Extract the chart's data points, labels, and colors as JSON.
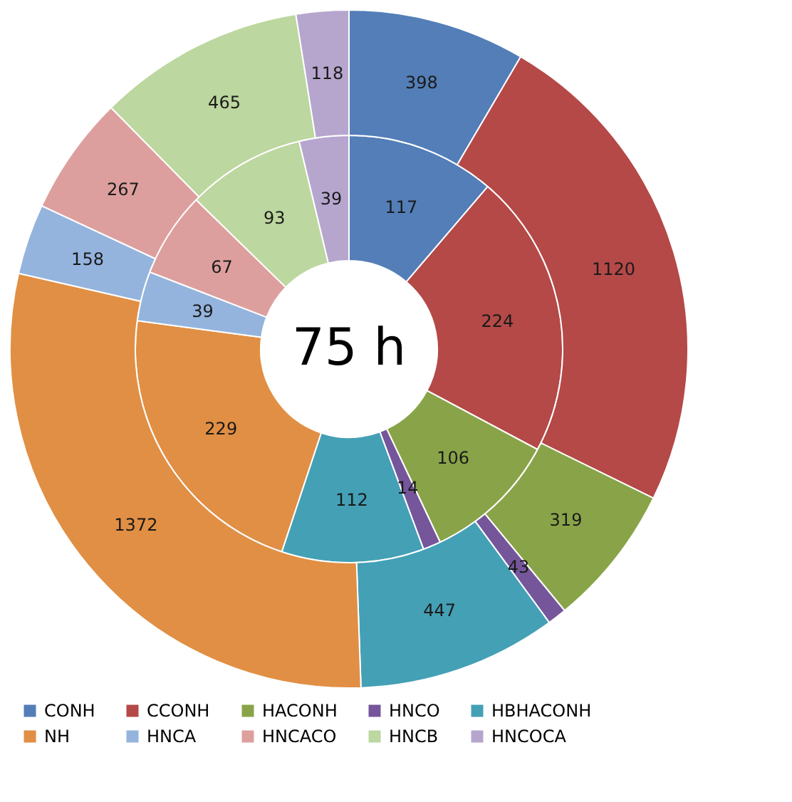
{
  "chart_data": {
    "type": "donut",
    "categories": [
      "CONH",
      "CCONH",
      "HACONH",
      "HNCO",
      "HBHACONH",
      "NH",
      "HNCA",
      "HNCACO",
      "HNCB",
      "HNCOCA"
    ],
    "colors": [
      "#4a78b4",
      "#b0403e",
      "#83a03f",
      "#6e4d96",
      "#3a9bb2",
      "#e08a3a",
      "#8fb0dc",
      "#dc9a99",
      "#b9d59a",
      "#b3a2cc"
    ],
    "series": [
      {
        "values": [
          117,
          224,
          106,
          14,
          112,
          229,
          39,
          67,
          93,
          39
        ]
      },
      {
        "values": [
          398,
          1120,
          319,
          43,
          447,
          1372,
          158,
          267,
          465,
          118
        ]
      }
    ],
    "data_labels": true,
    "annotations": [
      "75 h"
    ],
    "legend": "bottom"
  }
}
